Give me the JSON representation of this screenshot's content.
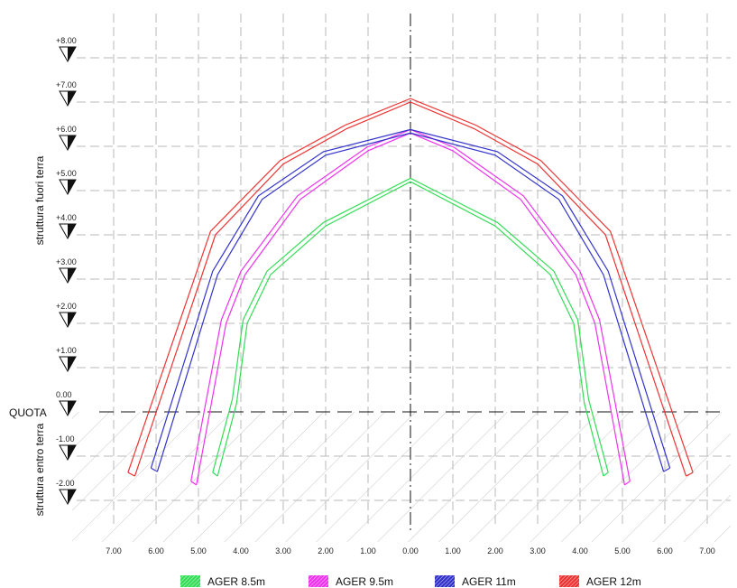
{
  "labels": {
    "quota": "QUOTA",
    "above_ground": "struttura fuori terra",
    "below_ground": "struttura entro terra"
  },
  "level_markers": [
    "+8.00",
    "+7.00",
    "+6.00",
    "+5.00",
    "+4.00",
    "+3.00",
    "+2.00",
    "+1.00",
    "0.00",
    "-1.00",
    "-2.00"
  ],
  "x_ticks": [
    "7.00",
    "6.00",
    "5.00",
    "4.00",
    "3.00",
    "2.00",
    "1.00",
    "0.00",
    "1.00",
    "2.00",
    "3.00",
    "4.00",
    "5.00",
    "6.00",
    "7.00"
  ],
  "colors": {
    "AGER 8.5m": "#33dd55",
    "AGER 9.5m": "#ee33ee",
    "AGER 11m": "#3333cc",
    "AGER 12m": "#ee3333",
    "grid": "#b8b8b8",
    "axis": "#111111",
    "hatch": "#c8c8c8"
  },
  "chart_data": {
    "type": "line",
    "x_range": [
      -7.5,
      7.5
    ],
    "y_range": [
      -3,
      8.5
    ],
    "ground_level": 0.0,
    "grid": true,
    "legend_position": "bottom",
    "series": [
      {
        "name": "AGER 8.5m",
        "points": [
          [
            -4.55,
            -1.45
          ],
          [
            -4.1,
            0.2
          ],
          [
            -3.85,
            2.0
          ],
          [
            -3.3,
            3.1
          ],
          [
            -2.0,
            4.2
          ],
          [
            -0.6,
            4.9
          ],
          [
            0.0,
            5.2
          ],
          [
            0.6,
            4.9
          ],
          [
            2.0,
            4.2
          ],
          [
            3.3,
            3.1
          ],
          [
            3.85,
            2.0
          ],
          [
            4.1,
            0.2
          ],
          [
            4.55,
            -1.45
          ]
        ]
      },
      {
        "name": "AGER 9.5m",
        "points": [
          [
            -5.05,
            -1.65
          ],
          [
            -4.35,
            2.0
          ],
          [
            -3.9,
            3.1
          ],
          [
            -2.6,
            4.8
          ],
          [
            -1.0,
            5.9
          ],
          [
            0.0,
            6.3
          ],
          [
            1.0,
            5.9
          ],
          [
            2.6,
            4.8
          ],
          [
            3.9,
            3.1
          ],
          [
            4.35,
            2.0
          ],
          [
            5.05,
            -1.65
          ]
        ]
      },
      {
        "name": "AGER 11m",
        "points": [
          [
            -5.97,
            -1.35
          ],
          [
            -4.55,
            3.1
          ],
          [
            -3.5,
            4.8
          ],
          [
            -2.0,
            5.8
          ],
          [
            0.0,
            6.3
          ],
          [
            2.0,
            5.8
          ],
          [
            3.5,
            4.8
          ],
          [
            4.55,
            3.1
          ],
          [
            5.97,
            -1.35
          ]
        ]
      },
      {
        "name": "AGER 12m",
        "points": [
          [
            -6.5,
            -1.45
          ],
          [
            -4.6,
            4.0
          ],
          [
            -3.0,
            5.6
          ],
          [
            -1.5,
            6.4
          ],
          [
            0.0,
            7.0
          ],
          [
            1.5,
            6.4
          ],
          [
            3.0,
            5.6
          ],
          [
            4.6,
            4.0
          ],
          [
            6.5,
            -1.45
          ]
        ]
      }
    ]
  }
}
